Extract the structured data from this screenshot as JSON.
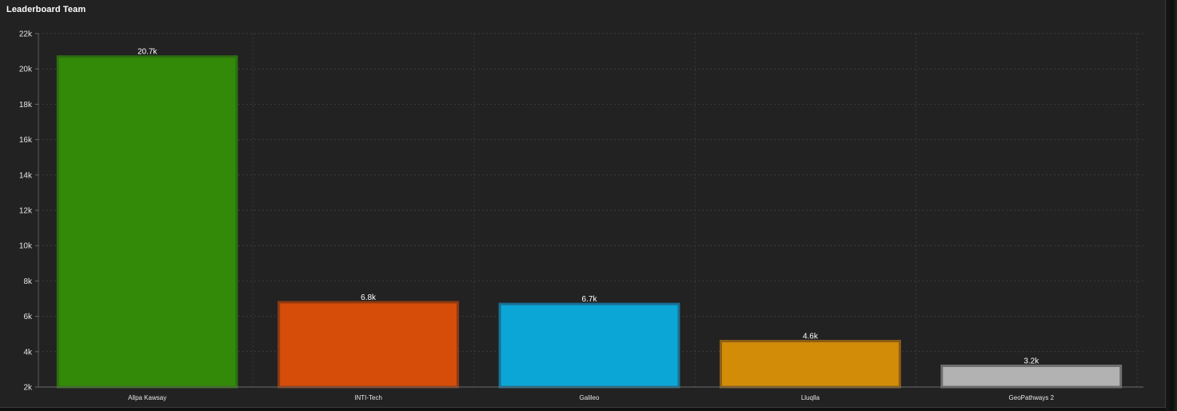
{
  "panel": {
    "title": "Leaderboard Team"
  },
  "chart_data": {
    "type": "bar",
    "title": "Leaderboard Team",
    "xlabel": "",
    "ylabel": "",
    "categories": [
      "Allpa Kawsay",
      "INTI-Tech",
      "Galileo",
      "Lluqlla",
      "GeoPathways 2"
    ],
    "values": [
      20700,
      6800,
      6700,
      4600,
      3200
    ],
    "data_labels": [
      "20.7k",
      "6.8k",
      "6.7k",
      "4.6k",
      "3.2k"
    ],
    "colors": [
      "#338a08",
      "#d54d09",
      "#0ca6d6",
      "#d28c08",
      "#b2b2b2"
    ],
    "border_colors": [
      "#2c6e10",
      "#8e3a12",
      "#1a6f93",
      "#8c5d14",
      "#6e6e6e"
    ],
    "ylim": [
      2000,
      22000
    ],
    "yticks": [
      2000,
      4000,
      6000,
      8000,
      10000,
      12000,
      14000,
      16000,
      18000,
      20000,
      22000
    ],
    "ytick_labels": [
      "2k",
      "4k",
      "6k",
      "8k",
      "10k",
      "12k",
      "14k",
      "16k",
      "18k",
      "20k",
      "22k"
    ],
    "grid": true,
    "legend": "none",
    "background": "#222222"
  }
}
